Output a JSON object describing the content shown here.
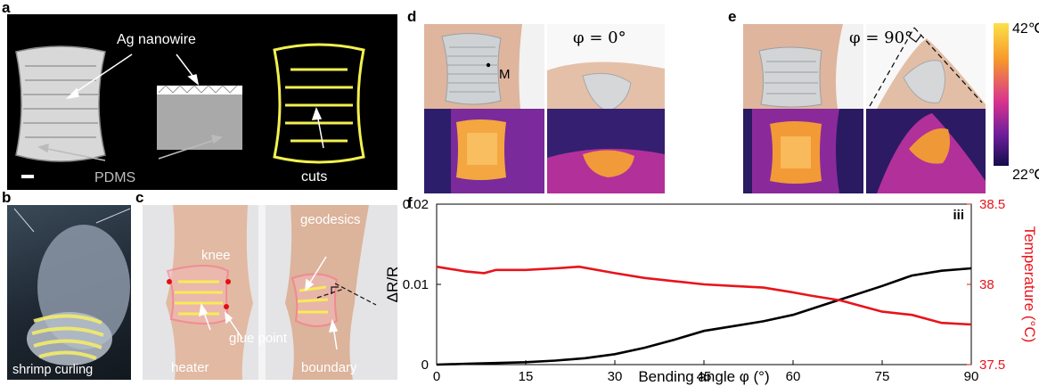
{
  "panel_letters": {
    "a": "a",
    "b": "b",
    "c": "c",
    "d": "d",
    "e": "e",
    "f": "f"
  },
  "panel_a": {
    "ag_label": "Ag nanowire",
    "pdms_label": "PDMS",
    "cuts_label": "cuts"
  },
  "panel_b": {
    "caption": "shrimp curling"
  },
  "panel_c": {
    "knee": "knee",
    "glue_point": "glue point",
    "heater": "heater",
    "geodesics": "geodesics",
    "boundary": "boundary"
  },
  "panel_d": {
    "angle_label": "φ = 0°",
    "point_label": "M"
  },
  "panel_e": {
    "angle_label": "φ = 90°"
  },
  "colorbar": {
    "max_label": "42℃",
    "min_label": "22℃"
  },
  "chart_data": {
    "type": "line",
    "panel": "f",
    "annotation": "iii",
    "xlabel": "Bending angle φ (°)",
    "ylabel_left": "ΔR/R",
    "ylabel_right": "Temperature (°C)",
    "xlim": [
      0,
      90
    ],
    "ylim_left": [
      0,
      0.02
    ],
    "ylim_right": [
      37.5,
      38.5
    ],
    "x_ticks": [
      "0",
      "15",
      "30",
      "45",
      "60",
      "75",
      "90"
    ],
    "y_left_ticks": [
      "0",
      "0.01",
      "0.02"
    ],
    "y_right_ticks": [
      "37.5",
      "38",
      "38.5"
    ],
    "series": [
      {
        "axis": "left",
        "color": "#000000",
        "x": [
          0,
          5,
          10,
          15,
          20,
          25,
          30,
          35,
          40,
          45,
          50,
          55,
          60,
          65,
          70,
          75,
          80,
          85,
          90
        ],
        "values": [
          0.0,
          0.0001,
          0.0002,
          0.0003,
          0.0005,
          0.0008,
          0.0013,
          0.0021,
          0.0031,
          0.0042,
          0.0048,
          0.0054,
          0.0062,
          0.0074,
          0.0086,
          0.0098,
          0.0111,
          0.0117,
          0.012
        ]
      },
      {
        "axis": "right",
        "color": "#e8141b",
        "x": [
          0,
          5,
          8,
          10,
          15,
          20,
          24,
          30,
          35,
          40,
          45,
          50,
          55,
          60,
          63,
          68,
          72,
          75,
          80,
          85,
          90
        ],
        "values": [
          38.11,
          38.08,
          38.07,
          38.09,
          38.09,
          38.1,
          38.11,
          38.07,
          38.04,
          38.02,
          38.0,
          37.99,
          37.98,
          37.95,
          37.93,
          37.9,
          37.86,
          37.83,
          37.81,
          37.76,
          37.75
        ]
      }
    ]
  }
}
